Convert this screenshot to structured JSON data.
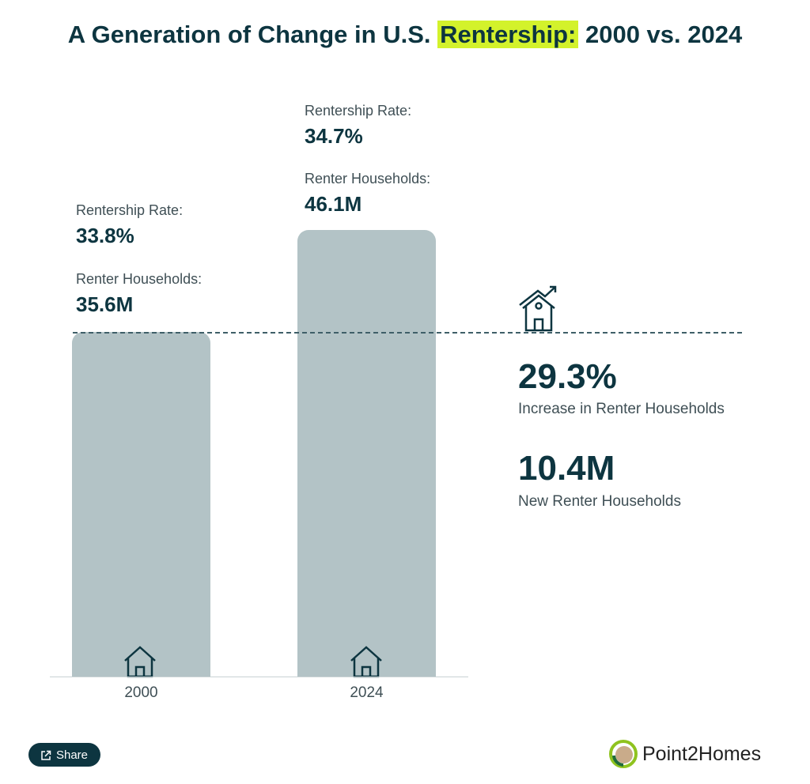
{
  "title": {
    "before": "A Generation of Change in U.S. ",
    "highlight": "Rentership:",
    "after": " 2000 vs. 2024",
    "highlight_color": "#d3f22b"
  },
  "chart_data": {
    "type": "bar",
    "categories": [
      "2000",
      "2024"
    ],
    "values": [
      35.6,
      46.1
    ],
    "ylim": [
      0,
      46.1
    ],
    "grid": false,
    "bar_color": "#b3c3c6",
    "reference_line": {
      "value": 35.6,
      "style": "dashed"
    },
    "annotations": [
      {
        "rate_label": "Rentership Rate:",
        "rate": "33.8%",
        "households_label": "Renter Households:",
        "households": "35.6M"
      },
      {
        "rate_label": "Rentership Rate:",
        "rate": "34.7%",
        "households_label": "Renter Households:",
        "households": "46.1M"
      }
    ]
  },
  "stats": [
    {
      "value": "29.3%",
      "label": "Increase in Renter Households"
    },
    {
      "value": "10.4M",
      "label": "New Renter Households"
    }
  ],
  "footer": {
    "share_label": "Share",
    "brand": "Point2Homes"
  }
}
